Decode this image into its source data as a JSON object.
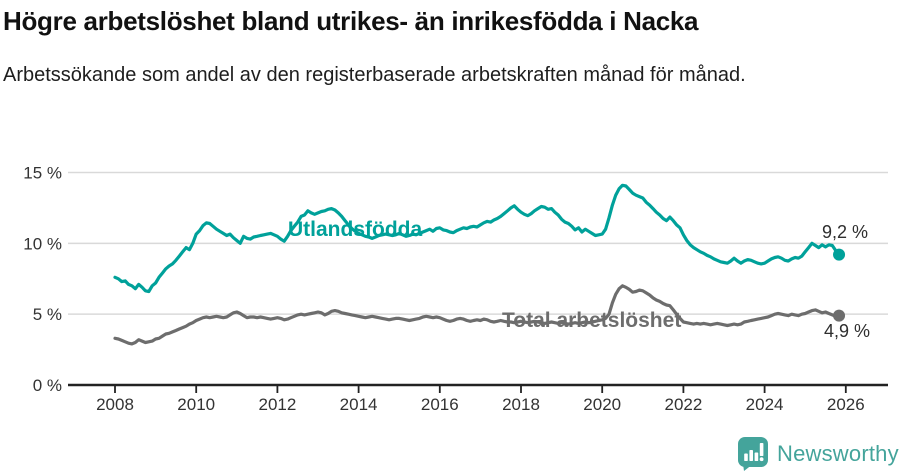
{
  "header": {
    "title": "Högre arbetslöshet bland utrikes- än inrikesfödda i Nacka",
    "subtitle": "Arbetssökande som andel av den registerbaserade arbetskraften månad för månad."
  },
  "footer": {
    "brand": "Newsworthy",
    "logo_icon": "bar-chart-speech-bubble-icon"
  },
  "colors": {
    "accent_teal": "#00a19a",
    "line_gray": "#6d6d6d",
    "grid_line": "#d9d9d9",
    "axis_line": "#222222",
    "tick_text": "#333333",
    "value_text": "#2e2e2e",
    "logo_teal": "#44a49b"
  },
  "chart_data": {
    "type": "line",
    "title": "Högre arbetslöshet bland utrikes- än inrikesfödda i Nacka",
    "subtitle": "Arbetssökande som andel av den registerbaserade arbetskraften månad för månad.",
    "unit": "%",
    "frequency": "monthly",
    "x_start": "2008-01",
    "x_end": "2025-11",
    "x_tick_labels": [
      "2008",
      "2010",
      "2012",
      "2014",
      "2016",
      "2018",
      "2020",
      "2022",
      "2024",
      "2026"
    ],
    "y_tick_labels": [
      "0 %",
      "5 %",
      "10 %",
      "15 %"
    ],
    "y_tick_values": [
      0,
      5,
      10,
      15
    ],
    "ylim": [
      0,
      15.8
    ],
    "grid": "horizontal",
    "legend_position": "inline-labels",
    "series": [
      {
        "name": "Utlandsfödda",
        "color": "#00a19a",
        "end_value": 9.2,
        "end_value_label": "9,2 %",
        "values": [
          7.6,
          7.5,
          7.3,
          7.35,
          7.1,
          7.0,
          6.8,
          7.1,
          6.9,
          6.65,
          6.6,
          7.0,
          7.2,
          7.6,
          7.9,
          8.2,
          8.4,
          8.55,
          8.8,
          9.1,
          9.4,
          9.7,
          9.55,
          10.0,
          10.65,
          10.9,
          11.25,
          11.45,
          11.4,
          11.2,
          11.0,
          10.85,
          10.7,
          10.55,
          10.65,
          10.4,
          10.2,
          10.0,
          10.5,
          10.35,
          10.3,
          10.45,
          10.5,
          10.55,
          10.6,
          10.65,
          10.7,
          10.6,
          10.5,
          10.3,
          10.15,
          10.5,
          10.9,
          11.2,
          11.5,
          11.9,
          12.0,
          12.3,
          12.15,
          12.05,
          12.15,
          12.25,
          12.3,
          12.4,
          12.45,
          12.35,
          12.15,
          11.9,
          11.6,
          11.3,
          11.05,
          10.85,
          10.7,
          10.6,
          10.5,
          10.45,
          10.35,
          10.45,
          10.55,
          10.6,
          10.65,
          10.6,
          10.55,
          10.6,
          10.7,
          10.6,
          10.5,
          10.55,
          10.65,
          10.6,
          10.7,
          10.8,
          10.9,
          11.0,
          10.85,
          11.05,
          11.1,
          10.95,
          10.9,
          10.8,
          10.75,
          10.9,
          11.0,
          11.1,
          11.05,
          11.15,
          11.2,
          11.15,
          11.3,
          11.45,
          11.55,
          11.5,
          11.65,
          11.75,
          11.9,
          12.1,
          12.3,
          12.5,
          12.65,
          12.4,
          12.2,
          12.05,
          11.95,
          12.1,
          12.3,
          12.45,
          12.6,
          12.55,
          12.4,
          12.45,
          12.2,
          12.0,
          11.7,
          11.5,
          11.4,
          11.2,
          10.95,
          11.1,
          10.8,
          11.0,
          10.85,
          10.7,
          10.55,
          10.6,
          10.65,
          11.0,
          11.8,
          12.7,
          13.4,
          13.85,
          14.1,
          14.05,
          13.8,
          13.55,
          13.4,
          13.3,
          13.2,
          12.9,
          12.7,
          12.45,
          12.2,
          12.0,
          11.75,
          11.6,
          11.85,
          11.6,
          11.3,
          11.1,
          10.6,
          10.2,
          9.9,
          9.7,
          9.55,
          9.4,
          9.3,
          9.15,
          9.05,
          8.9,
          8.8,
          8.7,
          8.65,
          8.6,
          8.75,
          8.95,
          8.75,
          8.6,
          8.75,
          8.85,
          8.8,
          8.7,
          8.6,
          8.55,
          8.6,
          8.75,
          8.9,
          9.0,
          9.05,
          8.95,
          8.8,
          8.75,
          8.9,
          9.0,
          8.95,
          9.1,
          9.4,
          9.7,
          10.0,
          9.85,
          9.7,
          9.9,
          9.75,
          9.9,
          9.85,
          9.5,
          9.2
        ]
      },
      {
        "name": "Total arbetslöshet",
        "color": "#6d6d6d",
        "end_value": 4.9,
        "end_value_label": "4,9 %",
        "values": [
          3.3,
          3.25,
          3.15,
          3.05,
          2.95,
          2.9,
          3.0,
          3.2,
          3.1,
          3.0,
          3.05,
          3.1,
          3.25,
          3.3,
          3.45,
          3.6,
          3.65,
          3.75,
          3.85,
          3.95,
          4.05,
          4.15,
          4.3,
          4.4,
          4.55,
          4.65,
          4.75,
          4.8,
          4.75,
          4.8,
          4.85,
          4.8,
          4.75,
          4.8,
          4.95,
          5.1,
          5.15,
          5.05,
          4.9,
          4.75,
          4.8,
          4.8,
          4.75,
          4.8,
          4.75,
          4.7,
          4.65,
          4.7,
          4.75,
          4.7,
          4.6,
          4.65,
          4.75,
          4.85,
          4.95,
          5.0,
          4.95,
          5.0,
          5.05,
          5.1,
          5.15,
          5.1,
          4.95,
          5.05,
          5.2,
          5.25,
          5.2,
          5.1,
          5.05,
          5.0,
          4.95,
          4.9,
          4.85,
          4.8,
          4.75,
          4.8,
          4.85,
          4.8,
          4.75,
          4.7,
          4.65,
          4.6,
          4.65,
          4.7,
          4.7,
          4.65,
          4.6,
          4.55,
          4.6,
          4.65,
          4.7,
          4.8,
          4.85,
          4.8,
          4.75,
          4.8,
          4.75,
          4.65,
          4.55,
          4.5,
          4.55,
          4.65,
          4.7,
          4.65,
          4.55,
          4.5,
          4.55,
          4.6,
          4.55,
          4.65,
          4.6,
          4.5,
          4.45,
          4.5,
          4.55,
          4.5,
          4.45,
          4.45,
          4.4,
          4.45,
          4.5,
          4.45,
          4.4,
          4.45,
          4.5,
          4.45,
          4.4,
          4.35,
          4.4,
          4.45,
          4.4,
          4.35,
          4.4,
          4.35,
          4.3,
          4.35,
          4.4,
          4.35,
          4.4,
          4.45,
          4.4,
          4.45,
          4.5,
          4.55,
          4.6,
          4.7,
          5.0,
          5.8,
          6.4,
          6.8,
          7.0,
          6.9,
          6.75,
          6.55,
          6.6,
          6.7,
          6.65,
          6.5,
          6.35,
          6.15,
          6.0,
          5.9,
          5.75,
          5.65,
          5.6,
          5.3,
          5.0,
          4.7,
          4.45,
          4.4,
          4.35,
          4.3,
          4.35,
          4.3,
          4.35,
          4.3,
          4.25,
          4.3,
          4.35,
          4.3,
          4.25,
          4.2,
          4.25,
          4.3,
          4.25,
          4.3,
          4.45,
          4.5,
          4.55,
          4.6,
          4.65,
          4.7,
          4.75,
          4.8,
          4.9,
          5.0,
          5.05,
          5.0,
          4.95,
          4.9,
          5.0,
          4.95,
          4.9,
          5.0,
          5.05,
          5.15,
          5.25,
          5.3,
          5.2,
          5.1,
          5.15,
          5.05,
          4.95,
          4.85,
          4.9
        ]
      }
    ]
  }
}
